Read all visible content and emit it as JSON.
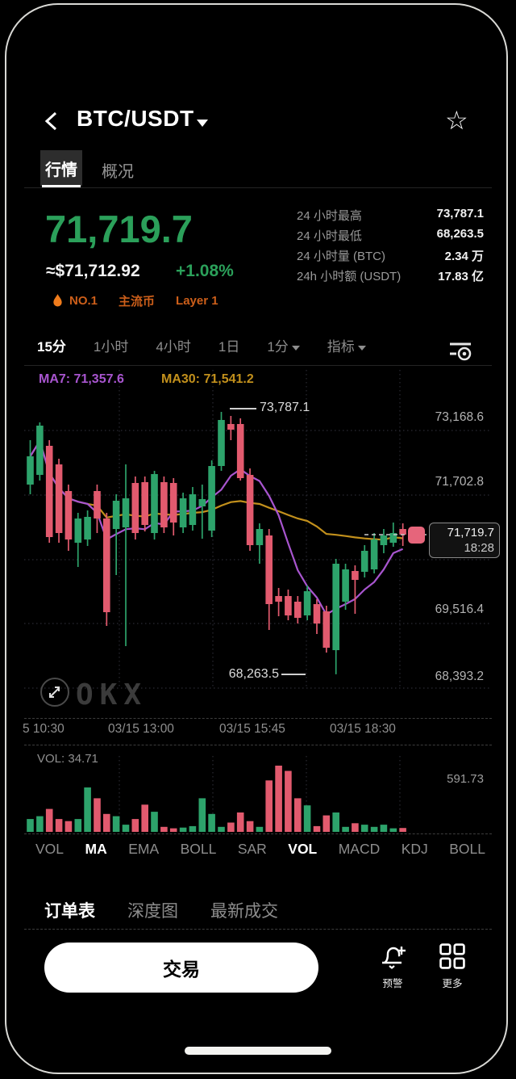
{
  "header": {
    "title": "BTC/USDT"
  },
  "tabs": [
    {
      "label": "行情",
      "active": true
    },
    {
      "label": "概况",
      "active": false
    }
  ],
  "price": {
    "last": "71,719.7",
    "fiat": "≈$71,712.92",
    "change": "+1.08%"
  },
  "badges": {
    "rank": "NO.1",
    "tags": [
      "主流币",
      "Layer 1"
    ],
    "accent_color": "#cd5f1a"
  },
  "stats": [
    {
      "label": "24 小时最高",
      "value": "73,787.1"
    },
    {
      "label": "24 小时最低",
      "value": "68,263.5"
    },
    {
      "label": "24 小时量 (BTC)",
      "value": "2.34 万"
    },
    {
      "label": "24h 小时额 (USDT)",
      "value": "17.83 亿"
    }
  ],
  "timeframes": [
    {
      "label": "15分",
      "active": true
    },
    {
      "label": "1小时",
      "active": false
    },
    {
      "label": "4小时",
      "active": false
    },
    {
      "label": "1日",
      "active": false
    },
    {
      "label": "1分",
      "active": false,
      "dropdown": true
    }
  ],
  "indicator_button": {
    "label": "指标"
  },
  "chart": {
    "ma7_label": "MA7: 71,357.6",
    "ma30_label": "MA30: 71,541.2",
    "high_annotation": "73,787.1",
    "low_annotation": "68,263.5",
    "price_tag": {
      "price": "71,719.7",
      "time": "18:28"
    },
    "watermark": "OKX"
  },
  "volume": {
    "label": "VOL: 34.71",
    "max_label": "591.73"
  },
  "indicators": [
    {
      "label": "VOL",
      "active": false
    },
    {
      "label": "MA",
      "active": true
    },
    {
      "label": "EMA",
      "active": false
    },
    {
      "label": "BOLL",
      "active": false
    },
    {
      "label": "SAR",
      "active": false
    },
    {
      "label": "VOL",
      "active": true
    },
    {
      "label": "MACD",
      "active": false
    },
    {
      "label": "KDJ",
      "active": false
    },
    {
      "label": "BOLL",
      "active": false
    }
  ],
  "bottom_tabs": [
    {
      "label": "订单表",
      "active": true
    },
    {
      "label": "深度图",
      "active": false
    },
    {
      "label": "最新成交",
      "active": false
    }
  ],
  "bottom_bar": {
    "trade_label": "交易",
    "alert_label": "预警",
    "more_label": "更多"
  },
  "chart_data": {
    "type": "candlestick",
    "symbol": "BTC/USDT",
    "interval": "15分",
    "last_price": 71719.7,
    "high_24h": 73787.1,
    "low_24h": 68263.5,
    "y_ticks": [
      "73,168.6",
      "71,702.8",
      "69,516.4",
      "68,393.2"
    ],
    "x_ticks": [
      "5 10:30",
      "03/15 13:00",
      "03/15 15:45",
      "03/15 18:30"
    ],
    "colors": {
      "up": "#2da36b",
      "down": "#e25a6e",
      "ma7": "#a855cf",
      "ma30": "#c2901c",
      "grid": "#2a2a33"
    },
    "candles": [
      [
        72257,
        73192,
        72053,
        72852
      ],
      [
        72461,
        73566,
        72342,
        73498
      ],
      [
        73073,
        73192,
        71033,
        71152
      ],
      [
        72682,
        72801,
        71033,
        71237
      ],
      [
        72121,
        72257,
        70863,
        71101
      ],
      [
        71033,
        71662,
        70523,
        71543
      ],
      [
        71101,
        71713,
        70965,
        71577
      ],
      [
        72121,
        72257,
        71237,
        71543
      ],
      [
        71543,
        71662,
        69282,
        69571
      ],
      [
        71322,
        72053,
        70353,
        71917
      ],
      [
        71356,
        72682,
        68857,
        71968
      ],
      [
        72291,
        72427,
        71101,
        71237
      ],
      [
        72308,
        72427,
        71271,
        71407
      ],
      [
        71237,
        72546,
        71101,
        72478
      ],
      [
        72308,
        72427,
        71237,
        71356
      ],
      [
        72291,
        72393,
        71186,
        71458
      ],
      [
        71356,
        72087,
        71237,
        71968
      ],
      [
        71407,
        72206,
        71288,
        72053
      ],
      [
        71798,
        72257,
        71118,
        71951
      ],
      [
        71288,
        72767,
        71152,
        72648
      ],
      [
        72648,
        73787.1,
        72546,
        73617
      ],
      [
        73532,
        73702,
        73192,
        73413
      ],
      [
        73532,
        73651,
        72342,
        72393
      ],
      [
        72461,
        72597,
        70863,
        70982
      ],
      [
        70982,
        71441,
        70591,
        71322
      ],
      [
        71186,
        71322,
        69197,
        69741
      ],
      [
        69911,
        70081,
        69486,
        69792
      ],
      [
        69911,
        70047,
        69401,
        69503
      ],
      [
        69792,
        69911,
        69333,
        69452
      ],
      [
        69503,
        70132,
        69401,
        70013
      ],
      [
        69741,
        69843,
        69112,
        69333
      ],
      [
        69588,
        69707,
        68721,
        68823
      ],
      [
        68772,
        70693,
        68263.5,
        70591
      ],
      [
        69792,
        70591,
        69622,
        70472
      ],
      [
        70438,
        70557,
        69537,
        70251
      ],
      [
        70421,
        70982,
        70302,
        70863
      ],
      [
        70472,
        71237,
        70387,
        71101
      ],
      [
        70982,
        71322,
        70812,
        71186
      ],
      [
        71033,
        71458,
        70948,
        71237
      ],
      [
        71322,
        71441,
        70965,
        71203
      ]
    ],
    "volumes": [
      115,
      140,
      205,
      115,
      96,
      115,
      397,
      300,
      160,
      140,
      64,
      115,
      243,
      180,
      45,
      32,
      38,
      51,
      300,
      160,
      45,
      83,
      173,
      96,
      45,
      460,
      591.73,
      545,
      300,
      237,
      51,
      147,
      173,
      45,
      77,
      64,
      45,
      64,
      32,
      34.71
    ],
    "volume_max": 591.73,
    "ma_periods": [
      7,
      30
    ]
  }
}
